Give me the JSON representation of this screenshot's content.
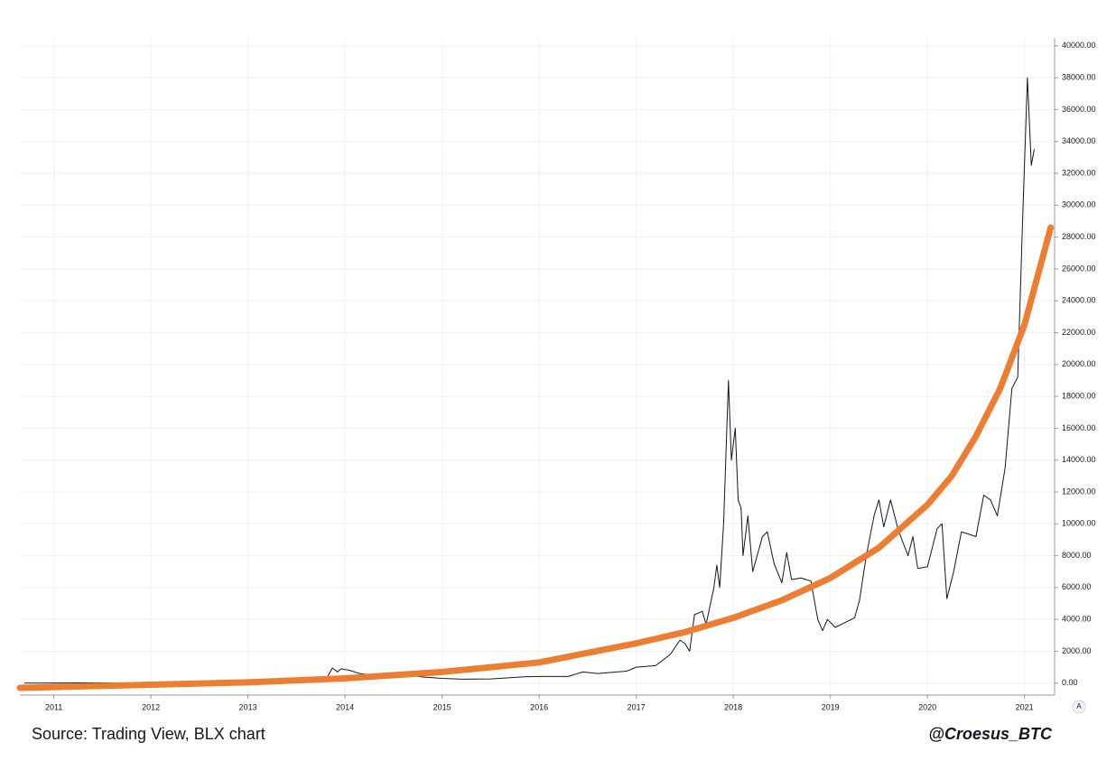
{
  "chart_data": {
    "type": "line",
    "x": [
      2010.7,
      2011.5,
      2012.5,
      2013.3,
      2013.8,
      2013.87,
      2013.92,
      2013.96,
      2014.05,
      2014.15,
      2014.3,
      2014.45,
      2014.6,
      2014.8,
      2015.0,
      2015.2,
      2015.5,
      2015.85,
      2016.0,
      2016.3,
      2016.45,
      2016.6,
      2016.9,
      2017.0,
      2017.2,
      2017.35,
      2017.45,
      2017.5,
      2017.55,
      2017.6,
      2017.68,
      2017.72,
      2017.8,
      2017.83,
      2017.86,
      2017.9,
      2017.95,
      2017.98,
      2018.02,
      2018.05,
      2018.08,
      2018.1,
      2018.15,
      2018.2,
      2018.3,
      2018.35,
      2018.42,
      2018.5,
      2018.55,
      2018.6,
      2018.7,
      2018.8,
      2018.87,
      2018.92,
      2018.97,
      2019.05,
      2019.15,
      2019.25,
      2019.3,
      2019.37,
      2019.45,
      2019.5,
      2019.55,
      2019.62,
      2019.7,
      2019.8,
      2019.85,
      2019.9,
      2020.0,
      2020.1,
      2020.15,
      2020.2,
      2020.27,
      2020.35,
      2020.5,
      2020.58,
      2020.65,
      2020.72,
      2020.8,
      2020.87,
      2020.93,
      2020.98,
      2021.03,
      2021.07,
      2021.1
    ],
    "series": [
      {
        "color": "#131722",
        "width": 1,
        "values": [
          0,
          15,
          7,
          100,
          200,
          950,
          700,
          900,
          800,
          600,
          500,
          600,
          550,
          380,
          300,
          250,
          260,
          400,
          420,
          420,
          700,
          600,
          750,
          1000,
          1100,
          1800,
          2700,
          2500,
          2000,
          4300,
          4500,
          3700,
          6000,
          7400,
          6000,
          10000,
          19000,
          14000,
          16000,
          11500,
          11000,
          8000,
          10500,
          7000,
          9200,
          9500,
          7500,
          6300,
          8200,
          6500,
          6600,
          6400,
          4000,
          3300,
          4000,
          3500,
          3800,
          4100,
          5200,
          8000,
          10500,
          11500,
          9800,
          11500,
          9600,
          8000,
          9200,
          7200,
          7300,
          9700,
          10000,
          5300,
          7000,
          9500,
          9200,
          11800,
          11500,
          10500,
          13500,
          18500,
          19200,
          29000,
          38000,
          32500,
          33500
        ]
      },
      {
        "color": "#ed7d31",
        "width": 7,
        "x": [
          2010.65,
          2012,
          2013,
          2014,
          2015,
          2016,
          2017,
          2017.5,
          2018,
          2018.5,
          2019,
          2019.5,
          2020,
          2020.25,
          2020.5,
          2020.75,
          2021,
          2021.27
        ],
        "values": [
          -300,
          -100,
          50,
          300,
          700,
          1300,
          2500,
          3200,
          4100,
          5200,
          6600,
          8500,
          11200,
          13000,
          15500,
          18500,
          22500,
          28600
        ]
      }
    ],
    "xlim": [
      2010.65,
      2021.31
    ],
    "xticks": [
      2011,
      2012,
      2013,
      2014,
      2015,
      2016,
      2017,
      2018,
      2019,
      2020,
      2021
    ],
    "ylim": [
      -750,
      40500
    ],
    "yticks": [
      {
        "value": 0,
        "label": "0.00"
      },
      {
        "value": 2000,
        "label": "2000.00"
      },
      {
        "value": 4000,
        "label": "4000.00"
      },
      {
        "value": 6000,
        "label": "6000.00"
      },
      {
        "value": 8000,
        "label": "8000.00"
      },
      {
        "value": 10000,
        "label": "10000.00"
      },
      {
        "value": 12000,
        "label": "12000.00"
      },
      {
        "value": 14000,
        "label": "14000.00"
      },
      {
        "value": 16000,
        "label": "16000.00"
      },
      {
        "value": 18000,
        "label": "18000.00"
      },
      {
        "value": 20000,
        "label": "20000.00"
      },
      {
        "value": 22000,
        "label": "22000.00"
      },
      {
        "value": 24000,
        "label": "24000.00"
      },
      {
        "value": 26000,
        "label": "26000.00"
      },
      {
        "value": 28000,
        "label": "28000.00"
      },
      {
        "value": 30000,
        "label": "30000.00"
      },
      {
        "value": 32000,
        "label": "32000.00"
      },
      {
        "value": 34000,
        "label": "34000.00"
      },
      {
        "value": 36000,
        "label": "36000.00"
      },
      {
        "value": 38000,
        "label": "38000.00"
      },
      {
        "value": 40000,
        "label": "40000.00"
      }
    ],
    "grid": true,
    "scale_button": "A",
    "source": "Source: Trading View, BLX chart",
    "credit": "@Croesus_BTC"
  }
}
